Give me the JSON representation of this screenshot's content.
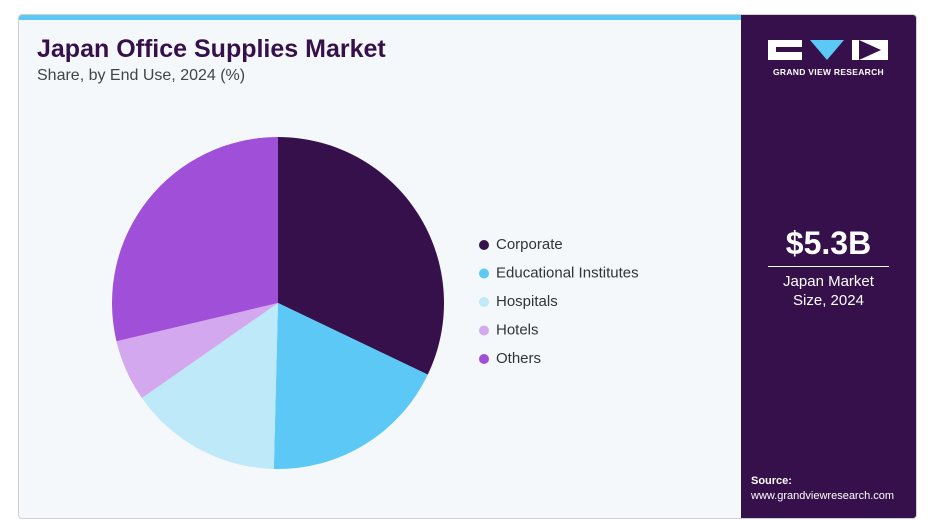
{
  "chart_data": {
    "type": "pie",
    "title": "Japan Office Supplies Market",
    "subtitle": "Share, by End Use, 2024 (%)",
    "categories": [
      "Corporate",
      "Educational Institutes",
      "Hospitals",
      "Hotels",
      "Others"
    ],
    "values": [
      32.1,
      18.3,
      14.9,
      6.0,
      28.7
    ],
    "colors": [
      "#35104a",
      "#5bc8f5",
      "#bde9f9",
      "#d4a8ee",
      "#a050d8"
    ],
    "legend": "right"
  },
  "sidebar": {
    "brand": "GRAND VIEW RESEARCH",
    "market_size": "$5.3B",
    "market_label": "Japan Market Size, 2024",
    "source_label": "Source:",
    "source": "www.grandviewresearch.com"
  }
}
